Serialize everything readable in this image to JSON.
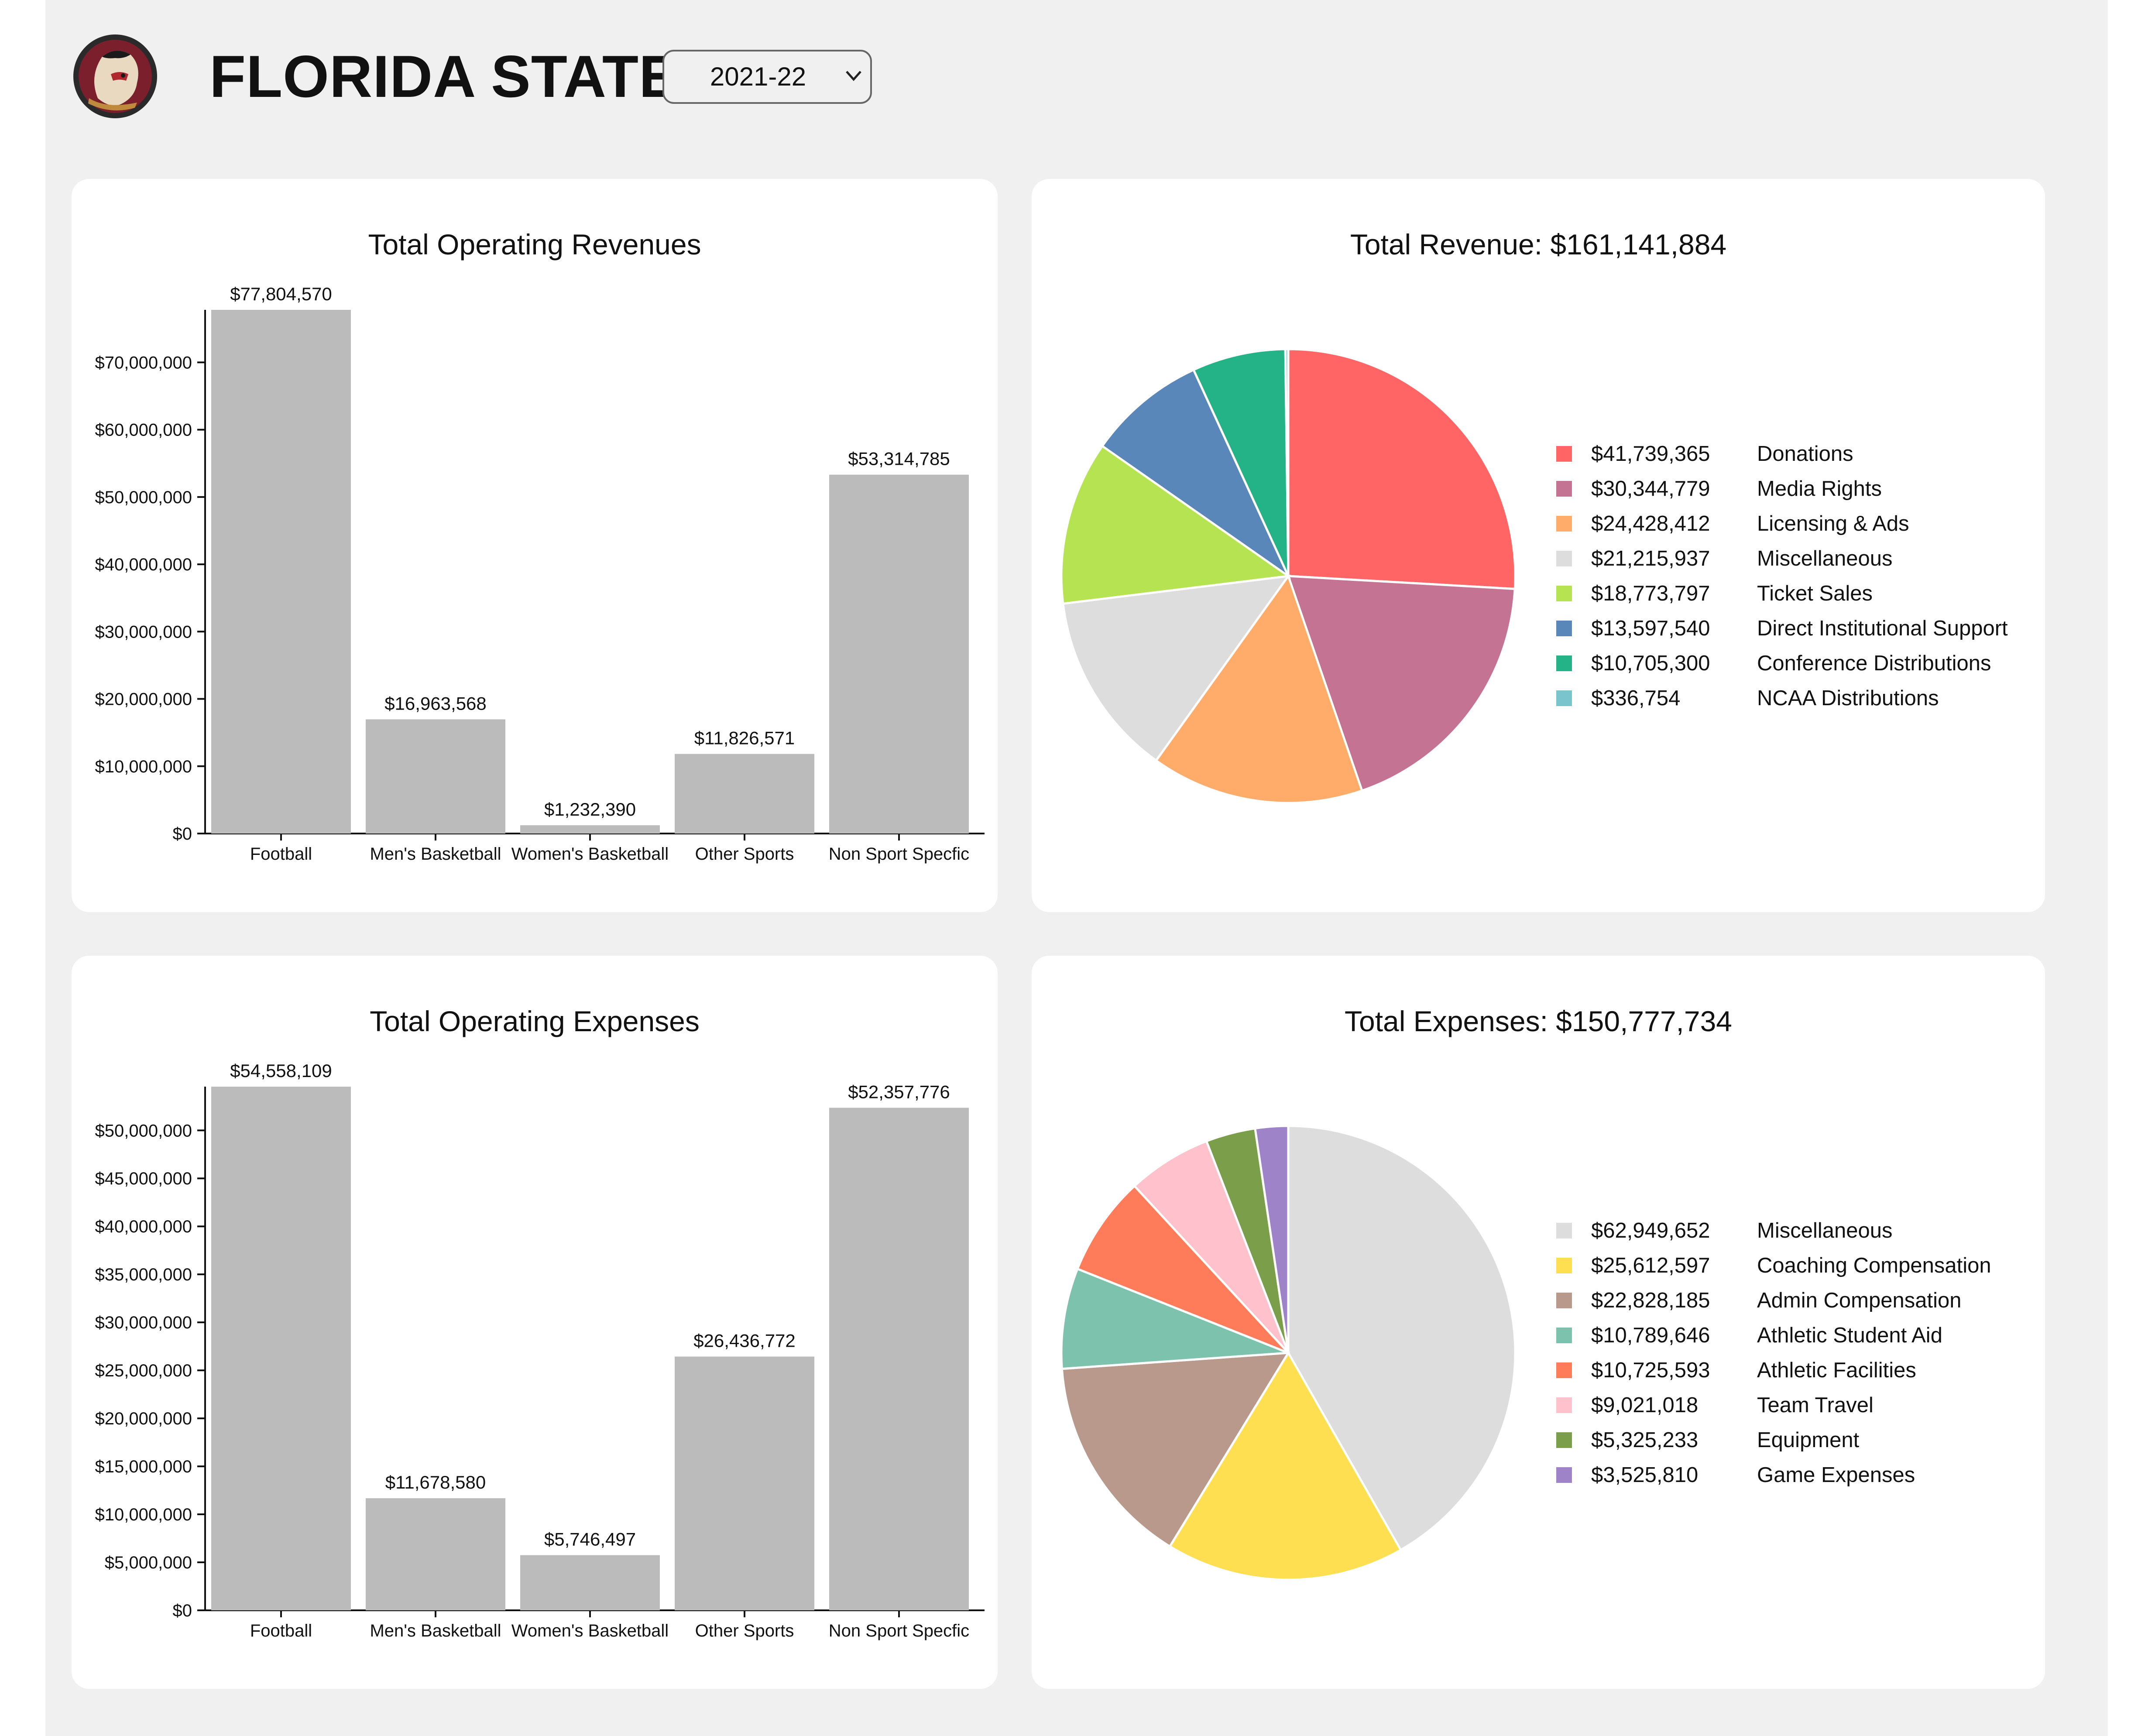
{
  "header": {
    "team_name": "FLORIDA STATE",
    "season": {
      "selected": "2021-22"
    },
    "logo_icon": "seminole-head-logo"
  },
  "revenue_bar": {
    "title": "Total Operating Revenues",
    "chart_data": {
      "type": "bar",
      "title": "Total Operating Revenues",
      "categories": [
        "Football",
        "Men's Basketball",
        "Women's Basketball",
        "Other Sports",
        "Non Sport Specfic"
      ],
      "values": [
        77804570,
        16963568,
        1232390,
        11826571,
        53314785
      ],
      "value_labels": [
        "$77,804,570",
        "$16,963,568",
        "$1,232,390",
        "$11,826,571",
        "$53,314,785"
      ],
      "yticks": [
        0,
        10000000,
        20000000,
        30000000,
        40000000,
        50000000,
        60000000,
        70000000
      ],
      "ytick_labels": [
        "$0",
        "$10,000,000",
        "$20,000,000",
        "$30,000,000",
        "$40,000,000",
        "$50,000,000",
        "$60,000,000",
        "$70,000,000"
      ],
      "ylim": [
        0,
        77804570
      ],
      "bar_color": "#bbbbbb",
      "grid": false
    }
  },
  "revenue_pie": {
    "title": "Total Revenue: $161,141,884",
    "chart_data": {
      "type": "pie",
      "title": "Total Revenue: $161,141,884",
      "legend_position": "right",
      "slices": [
        {
          "label": "Donations",
          "value": 41739365,
          "value_label": "$41,739,365",
          "color": "#ff6565"
        },
        {
          "label": "Media Rights",
          "value": 30344779,
          "value_label": "$30,344,779",
          "color": "#c47393"
        },
        {
          "label": "Licensing & Ads",
          "value": 24428412,
          "value_label": "$24,428,412",
          "color": "#ffac6b"
        },
        {
          "label": "Miscellaneous",
          "value": 21215937,
          "value_label": "$21,215,937",
          "color": "#dddddd"
        },
        {
          "label": "Ticket Sales",
          "value": 18773797,
          "value_label": "$18,773,797",
          "color": "#b6e351"
        },
        {
          "label": "Direct Institutional Support",
          "value": 13597540,
          "value_label": "$13,597,540",
          "color": "#5a87ba"
        },
        {
          "label": "Conference Distributions",
          "value": 10705300,
          "value_label": "$10,705,300",
          "color": "#24b287"
        },
        {
          "label": "NCAA Distributions",
          "value": 336754,
          "value_label": "$336,754",
          "color": "#7ac5cd"
        }
      ]
    }
  },
  "expense_bar": {
    "title": "Total Operating Expenses",
    "chart_data": {
      "type": "bar",
      "title": "Total Operating Expenses",
      "categories": [
        "Football",
        "Men's Basketball",
        "Women's Basketball",
        "Other Sports",
        "Non Sport Specfic"
      ],
      "values": [
        54558109,
        11678580,
        5746497,
        26436772,
        52357776
      ],
      "value_labels": [
        "$54,558,109",
        "$11,678,580",
        "$5,746,497",
        "$26,436,772",
        "$52,357,776"
      ],
      "yticks": [
        0,
        5000000,
        10000000,
        15000000,
        20000000,
        25000000,
        30000000,
        35000000,
        40000000,
        45000000,
        50000000
      ],
      "ytick_labels": [
        "$0",
        "$5,000,000",
        "$10,000,000",
        "$15,000,000",
        "$20,000,000",
        "$25,000,000",
        "$30,000,000",
        "$35,000,000",
        "$40,000,000",
        "$45,000,000",
        "$50,000,000"
      ],
      "ylim": [
        0,
        54558109
      ],
      "bar_color": "#bbbbbb",
      "grid": false
    }
  },
  "expense_pie": {
    "title": "Total Expenses: $150,777,734",
    "chart_data": {
      "type": "pie",
      "title": "Total Expenses: $150,777,734",
      "legend_position": "right",
      "slices": [
        {
          "label": "Miscellaneous",
          "value": 62949652,
          "value_label": "$62,949,652",
          "color": "#dddddd"
        },
        {
          "label": "Coaching Compensation",
          "value": 25612597,
          "value_label": "$25,612,597",
          "color": "#ffdf52"
        },
        {
          "label": "Admin Compensation",
          "value": 22828185,
          "value_label": "$22,828,185",
          "color": "#b8998b"
        },
        {
          "label": "Athletic Student Aid",
          "value": 10789646,
          "value_label": "$10,789,646",
          "color": "#7dc2ad"
        },
        {
          "label": "Athletic Facilities",
          "value": 10725593,
          "value_label": "$10,725,593",
          "color": "#ff7c5b"
        },
        {
          "label": "Team Travel",
          "value": 9021018,
          "value_label": "$9,021,018",
          "color": "#ffc2cd"
        },
        {
          "label": "Equipment",
          "value": 5325233,
          "value_label": "$5,325,233",
          "color": "#7a9e4a"
        },
        {
          "label": "Game Expenses",
          "value": 3525810,
          "value_label": "$3,525,810",
          "color": "#9f83c9"
        }
      ]
    }
  }
}
